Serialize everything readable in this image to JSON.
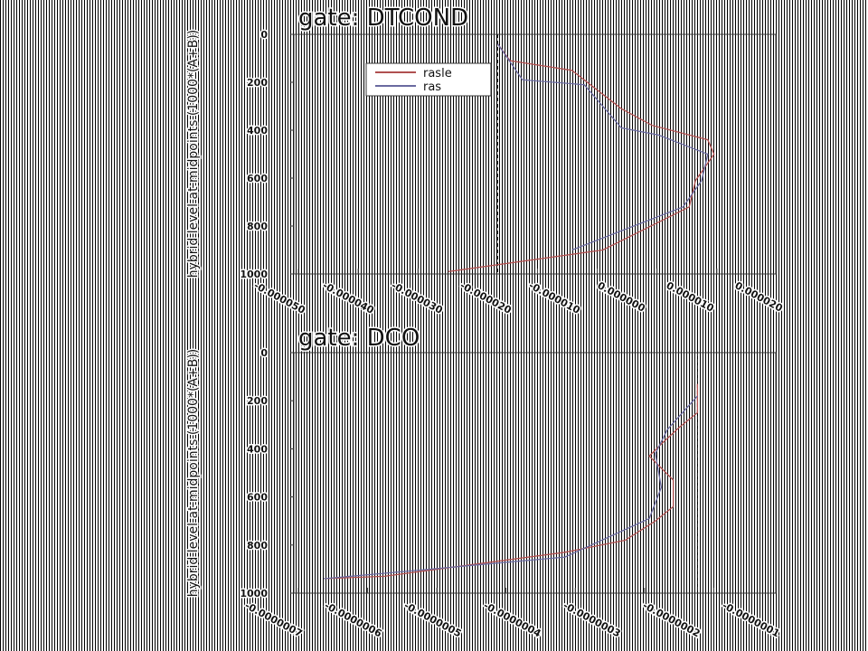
{
  "chart_data": [
    {
      "type": "line",
      "title": "gate:   DTCOND",
      "ylabel": "hybrid level at midpoints (1000*(A+B))",
      "ytick_labels": [
        "0",
        "200",
        "400",
        "600",
        "800",
        "1000"
      ],
      "xtick_labels": [
        "-0.000050",
        "-0.000040",
        "-0.000030",
        "-0.000020",
        "-0.000010",
        "0.000000",
        "0.000010",
        "0.000020"
      ],
      "ylim": [
        1000,
        0
      ],
      "y_inverted": true,
      "xlim": [
        -5.5e-05,
        2.3e-05
      ],
      "zero_line_x": -2.2e-05,
      "legend": {
        "position": "top-left",
        "entries": [
          "rasle",
          "ras"
        ]
      },
      "series": [
        {
          "name": "rasle",
          "color": "#b05050",
          "points": [
            [
              -2.2e-05,
              40
            ],
            [
              -2e-05,
              110
            ],
            [
              -1e-05,
              150
            ],
            [
              -7e-06,
              210
            ],
            [
              -5e-06,
              250
            ],
            [
              -2e-06,
              310
            ],
            [
              3e-06,
              380
            ],
            [
              1.2e-05,
              440
            ],
            [
              1.3e-05,
              500
            ],
            [
              1e-05,
              610
            ],
            [
              9e-06,
              720
            ],
            [
              -5e-06,
              900
            ],
            [
              -3e-05,
              990
            ]
          ]
        },
        {
          "name": "ras",
          "color": "#6a6aa0",
          "points": [
            [
              -2.2e-05,
              40
            ],
            [
              -1.8e-05,
              190
            ],
            [
              -8e-06,
              210
            ],
            [
              -2e-06,
              390
            ],
            [
              4e-06,
              420
            ],
            [
              1.2e-05,
              500
            ],
            [
              1.1e-05,
              610
            ],
            [
              8e-06,
              720
            ],
            [
              -1e-05,
              900
            ]
          ]
        }
      ]
    },
    {
      "type": "line",
      "title": "gate:   DCO",
      "ylabel": "hybrid level at midpoints (1000*(A+B))",
      "ytick_labels": [
        "0",
        "200",
        "400",
        "600",
        "800",
        "1000"
      ],
      "xtick_labels": [
        "-0.0000007",
        "-0.0000006",
        "-0.0000005",
        "-0.0000004",
        "-0.0000003",
        "-0.0000002",
        "-0.0000001"
      ],
      "ylim": [
        1000,
        0
      ],
      "y_inverted": true,
      "xlim": [
        -8e-07,
        0.0
      ],
      "zero_line_x": -1.3e-07,
      "series": [
        {
          "name": "rasle",
          "color": "#b05050",
          "points": [
            [
              -1.3e-07,
              130
            ],
            [
              -1.3e-07,
              250
            ],
            [
              -1.6e-07,
              310
            ],
            [
              -1.9e-07,
              380
            ],
            [
              -2.1e-07,
              430
            ],
            [
              -1.7e-07,
              530
            ],
            [
              -1.7e-07,
              640
            ],
            [
              -2e-07,
              700
            ],
            [
              -2.5e-07,
              780
            ],
            [
              -3.5e-07,
              830
            ],
            [
              -6.5e-07,
              930
            ],
            [
              -7.5e-07,
              940
            ]
          ]
        },
        {
          "name": "ras",
          "color": "#6a6aa0",
          "points": [
            [
              -1.3e-07,
              180
            ],
            [
              -1.8e-07,
              320
            ],
            [
              -2e-07,
              420
            ],
            [
              -1.9e-07,
              560
            ],
            [
              -2.1e-07,
              690
            ],
            [
              -3.5e-07,
              850
            ],
            [
              -7.5e-07,
              940
            ]
          ]
        }
      ]
    }
  ]
}
